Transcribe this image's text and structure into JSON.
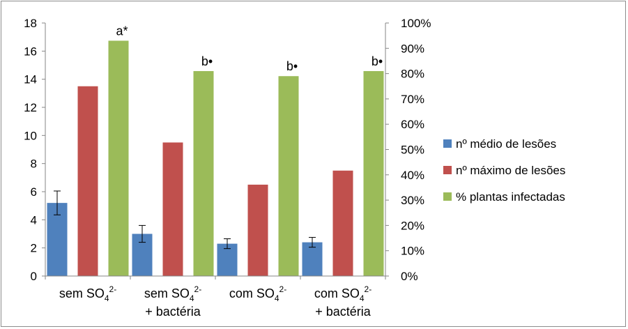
{
  "chart_data": {
    "type": "bar",
    "categories": [
      {
        "lines": [
          {
            "pre": "sem SO",
            "sub": "4",
            "sup": "2-",
            "post": ""
          }
        ]
      },
      {
        "lines": [
          {
            "pre": "sem SO",
            "sub": "4",
            "sup": "2-",
            "post": ""
          },
          {
            "pre": "+ bactéria",
            "sub": "",
            "sup": "",
            "post": ""
          }
        ]
      },
      {
        "lines": [
          {
            "pre": "com SO",
            "sub": "4",
            "sup": "2-",
            "post": ""
          }
        ]
      },
      {
        "lines": [
          {
            "pre": "com SO",
            "sub": "4",
            "sup": "2-",
            "post": ""
          },
          {
            "pre": "+ bactéria",
            "sub": "",
            "sup": "",
            "post": ""
          }
        ]
      }
    ],
    "series": [
      {
        "name": "nº médio de lesões",
        "color": "#4f81bd",
        "axis": "left",
        "values": [
          5.2,
          3.0,
          2.3,
          2.4
        ],
        "errors": [
          0.85,
          0.6,
          0.35,
          0.35
        ]
      },
      {
        "name": "nº máximo de lesões",
        "color": "#c0504d",
        "axis": "left",
        "values": [
          13.5,
          9.5,
          6.5,
          7.5
        ]
      },
      {
        "name": "% plantas infectadas",
        "color": "#9bbb59",
        "axis": "right",
        "values": [
          93,
          81,
          79,
          81
        ]
      }
    ],
    "significance_labels": [
      "a*",
      "b•",
      "b•",
      "b•"
    ],
    "ylim_left": [
      0,
      18
    ],
    "yticks_left": [
      "0",
      "2",
      "4",
      "6",
      "8",
      "10",
      "12",
      "14",
      "16",
      "18"
    ],
    "ylim_right": [
      0,
      100
    ],
    "yticks_right": [
      "0%",
      "10%",
      "20%",
      "30%",
      "40%",
      "50%",
      "60%",
      "70%",
      "80%",
      "90%",
      "100%"
    ],
    "grid": false,
    "legend_position": "right"
  }
}
